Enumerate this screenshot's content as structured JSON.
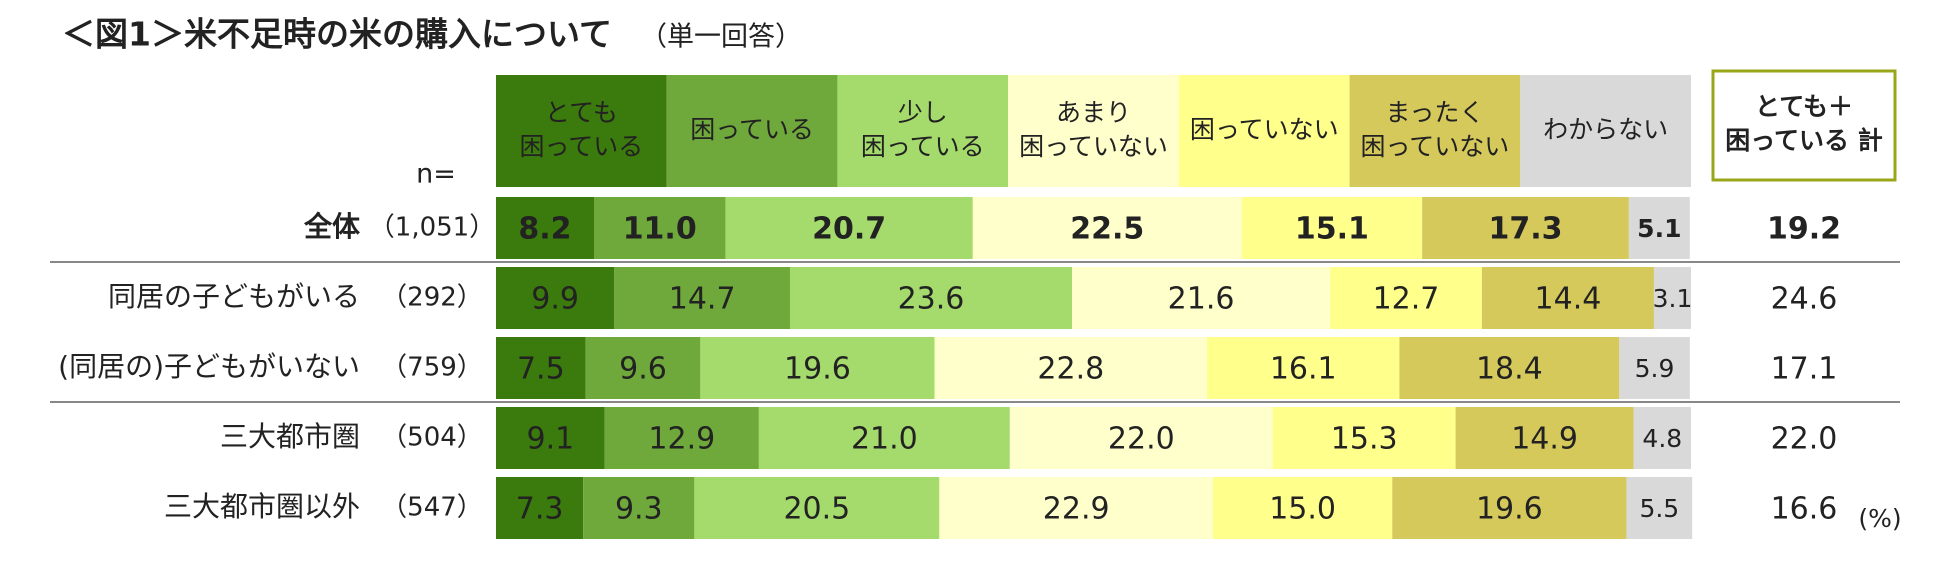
{
  "chart_data": {
    "type": "stacked-bar-100",
    "title": "＜図1＞米不足時の米の購入について",
    "subtitle": "（単一回答）",
    "n_header": "n=",
    "categories": [
      "全体",
      "同居の子どもがいる",
      "(同居の)子どもがいない",
      "三大都市圏",
      "三大都市圏以外"
    ],
    "n_labels": [
      "（1,051）",
      "（292）",
      "（759）",
      "（504）",
      "（547）"
    ],
    "xlim": [
      0,
      100
    ],
    "series": [
      {
        "name": "とても\n困っている",
        "color": "#3b7a0c",
        "values": [
          8.2,
          9.9,
          7.5,
          9.1,
          7.3
        ],
        "value_labels": [
          "8.2",
          "9.9",
          "7.5",
          "9.1",
          "7.3"
        ]
      },
      {
        "name": "困っている",
        "color": "#6fa83b",
        "values": [
          11.0,
          14.7,
          9.6,
          12.9,
          9.3
        ],
        "value_labels": [
          "11.0",
          "14.7",
          "9.6",
          "12.9",
          "9.3"
        ]
      },
      {
        "name": "少し\n困っている",
        "color": "#a4db6c",
        "values": [
          20.7,
          23.6,
          19.6,
          21.0,
          20.5
        ],
        "value_labels": [
          "20.7",
          "23.6",
          "19.6",
          "21.0",
          "20.5"
        ]
      },
      {
        "name": "あまり\n困っていない",
        "color": "#ffffcc",
        "values": [
          22.5,
          21.6,
          22.8,
          22.0,
          22.9
        ],
        "value_labels": [
          "22.5",
          "21.6",
          "22.8",
          "22.0",
          "22.9"
        ]
      },
      {
        "name": "困っていない",
        "color": "#ffff8c",
        "values": [
          15.1,
          12.7,
          16.1,
          15.3,
          15.0
        ],
        "value_labels": [
          "15.1",
          "12.7",
          "16.1",
          "15.3",
          "15.0"
        ]
      },
      {
        "name": "まったく\n困っていない",
        "color": "#d5c95c",
        "values": [
          17.3,
          14.4,
          18.4,
          14.9,
          19.6
        ],
        "value_labels": [
          "17.3",
          "14.4",
          "18.4",
          "14.9",
          "19.6"
        ]
      },
      {
        "name": "わからない",
        "color": "#d9d9d9",
        "values": [
          5.1,
          3.1,
          5.9,
          4.8,
          5.5
        ],
        "value_labels": [
          "5.1",
          "3.1",
          "5.9",
          "4.8",
          "5.5"
        ]
      }
    ],
    "total": {
      "name": "とても＋\n困っている 計",
      "color": "#99a617",
      "values": [
        19.2,
        24.6,
        17.1,
        22.0,
        16.6
      ],
      "value_labels": [
        "19.2",
        "24.6",
        "17.1",
        "22.0",
        "16.6"
      ]
    },
    "unit": "(%)"
  }
}
